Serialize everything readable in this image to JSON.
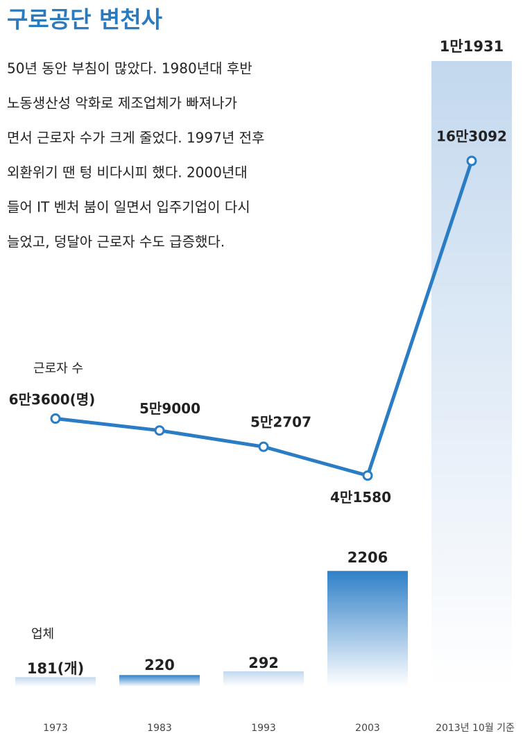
{
  "chart_data": {
    "type": "bar-line",
    "title": "구로공단 변천사",
    "description": [
      "50년 동안 부침이 많았다. 1980년대 후반",
      "노동생산성 악화로 제조업체가 빠져나가",
      "면서 근로자 수가 크게 줄었다. 1997년 전후",
      "외환위기 땐 텅 비다시피 했다. 2000년대",
      "들어 IT 벤처 붐이 일면서 입주기업이 다시",
      "늘었고, 덩달아 근로자 수도 급증했다."
    ],
    "categories": [
      "1973",
      "1983",
      "1993",
      "2003",
      "2013년 10월 기준"
    ],
    "series": [
      {
        "name": "업체",
        "type": "bar",
        "colors": [
          "#c3d8ee",
          "#2f80c8",
          "#c3d8ee",
          "#2f80c8",
          "#c3d8ee"
        ],
        "values": [
          181,
          220,
          292,
          2206,
          11931
        ],
        "value_labels": [
          "181(개)",
          "220",
          "292",
          "2206",
          "1만1931"
        ]
      },
      {
        "name": "근로자 수",
        "type": "line",
        "color": "#2a7cc4",
        "values": [
          63600,
          59000,
          52707,
          41580,
          163092
        ],
        "value_labels": [
          "6만3600(명)",
          "5만9000",
          "5만2707",
          "4만1580",
          "16만3092"
        ]
      }
    ]
  }
}
